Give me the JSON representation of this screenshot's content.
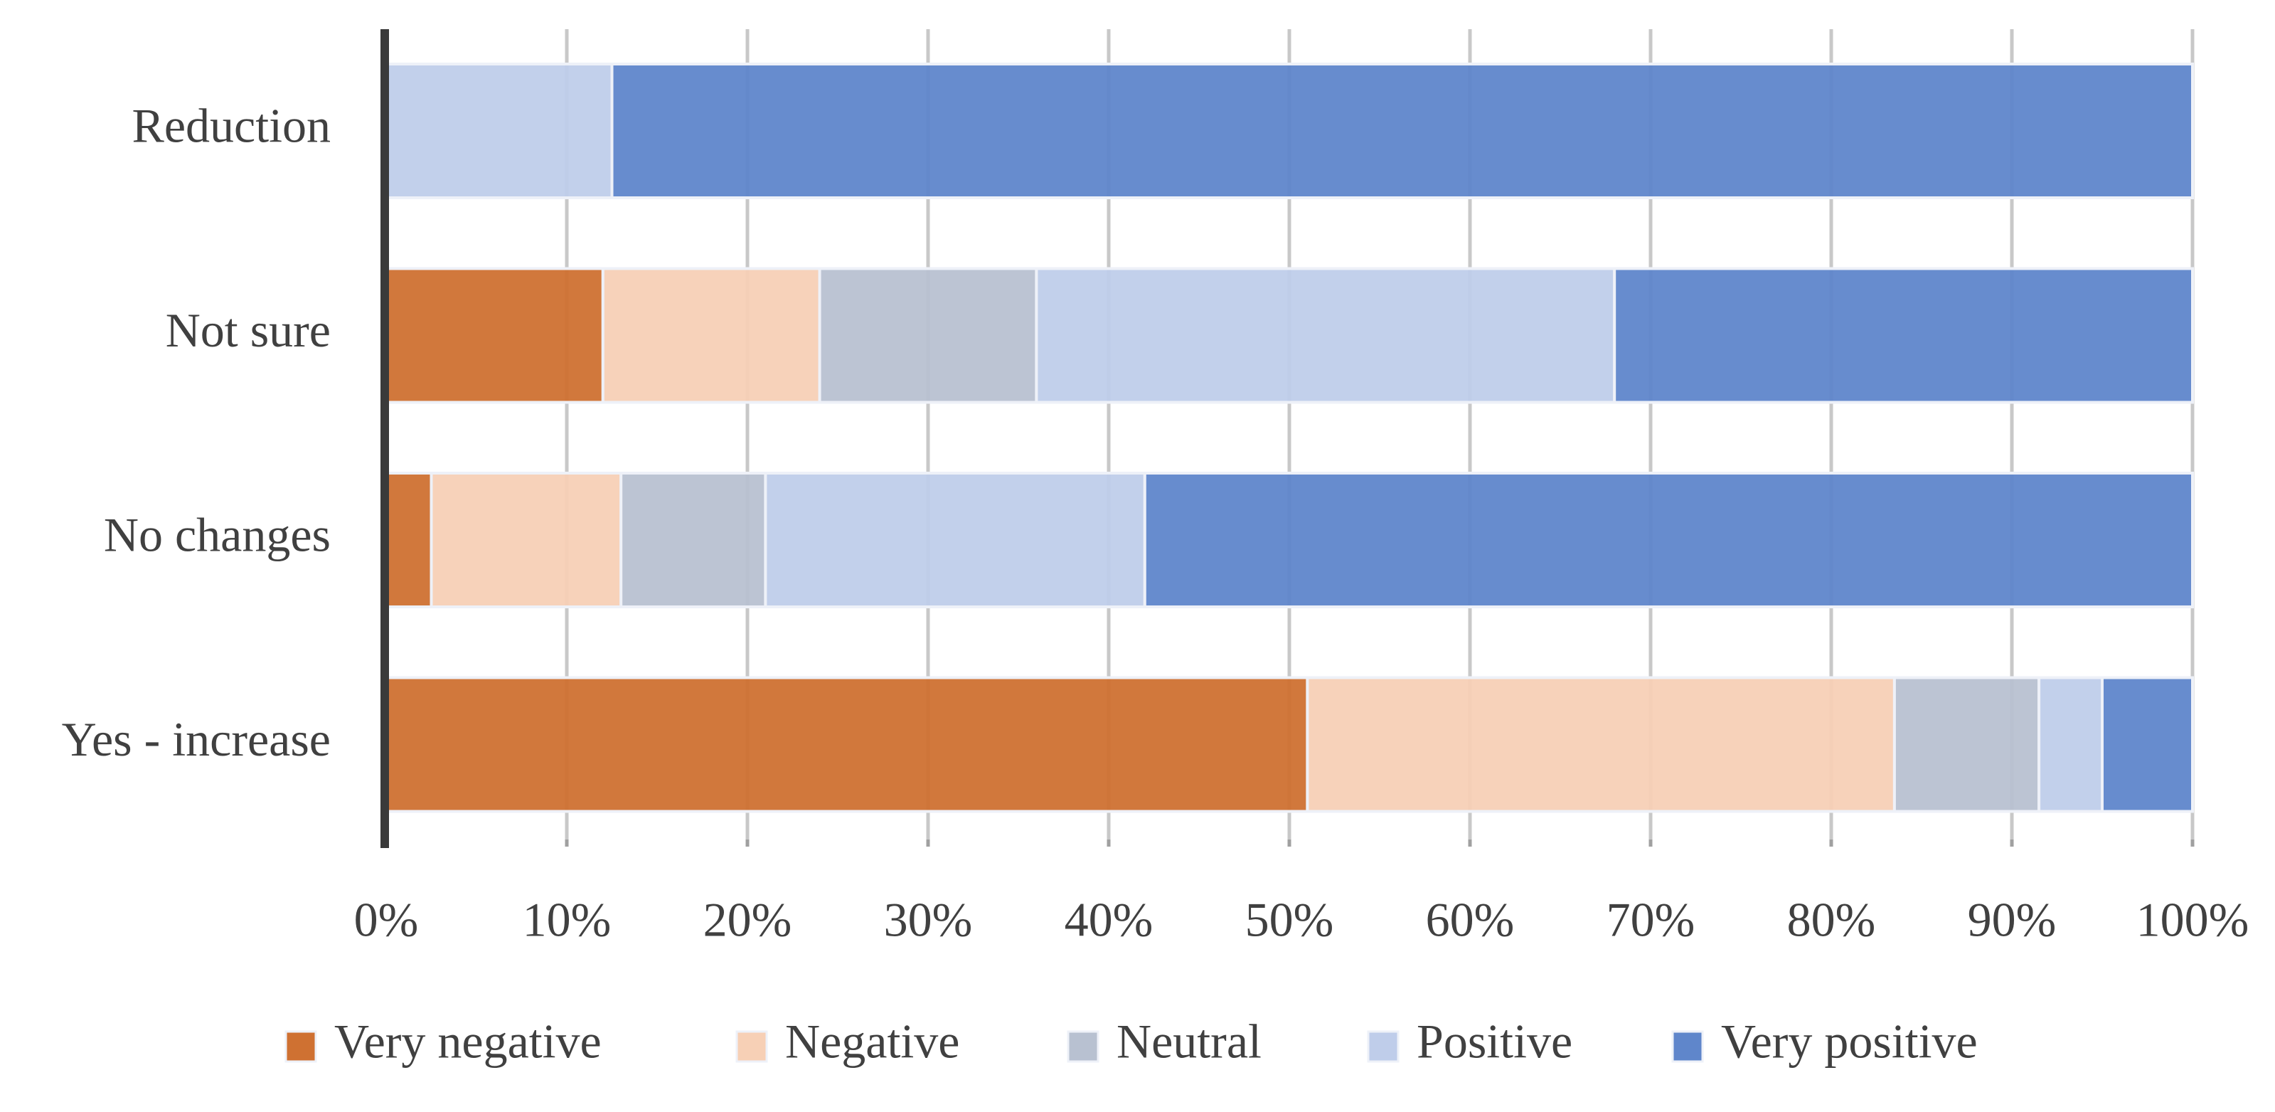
{
  "chart_data": {
    "type": "stacked-bar-horizontal",
    "categories": [
      "Reduction",
      "Not sure",
      "No changes",
      "Yes - increase"
    ],
    "series": [
      {
        "name": "Very negative",
        "color": "#cf7132",
        "values": [
          0,
          12,
          2.5,
          51
        ]
      },
      {
        "name": "Negative",
        "color": "#f7d0b6",
        "values": [
          0,
          12,
          10.5,
          32.5
        ]
      },
      {
        "name": "Neutral",
        "color": "#b8c1d1",
        "values": [
          0,
          12,
          8,
          8
        ]
      },
      {
        "name": "Positive",
        "color": "#bfcdea",
        "values": [
          12.5,
          32,
          21,
          3.5
        ]
      },
      {
        "name": "Very positive",
        "color": "#5f86cb",
        "values": [
          87.5,
          32,
          58,
          5
        ]
      }
    ],
    "xlim": [
      0,
      100
    ],
    "xticks": [
      {
        "value": 0,
        "label": "0%"
      },
      {
        "value": 10,
        "label": "10%"
      },
      {
        "value": 20,
        "label": "20%"
      },
      {
        "value": 30,
        "label": "30%"
      },
      {
        "value": 40,
        "label": "40%"
      },
      {
        "value": 50,
        "label": "50%"
      },
      {
        "value": 60,
        "label": "60%"
      },
      {
        "value": 70,
        "label": "70%"
      },
      {
        "value": 80,
        "label": "80%"
      },
      {
        "value": 90,
        "label": "90%"
      },
      {
        "value": 100,
        "label": "100%"
      }
    ],
    "grid": true,
    "legend": "bottom"
  }
}
